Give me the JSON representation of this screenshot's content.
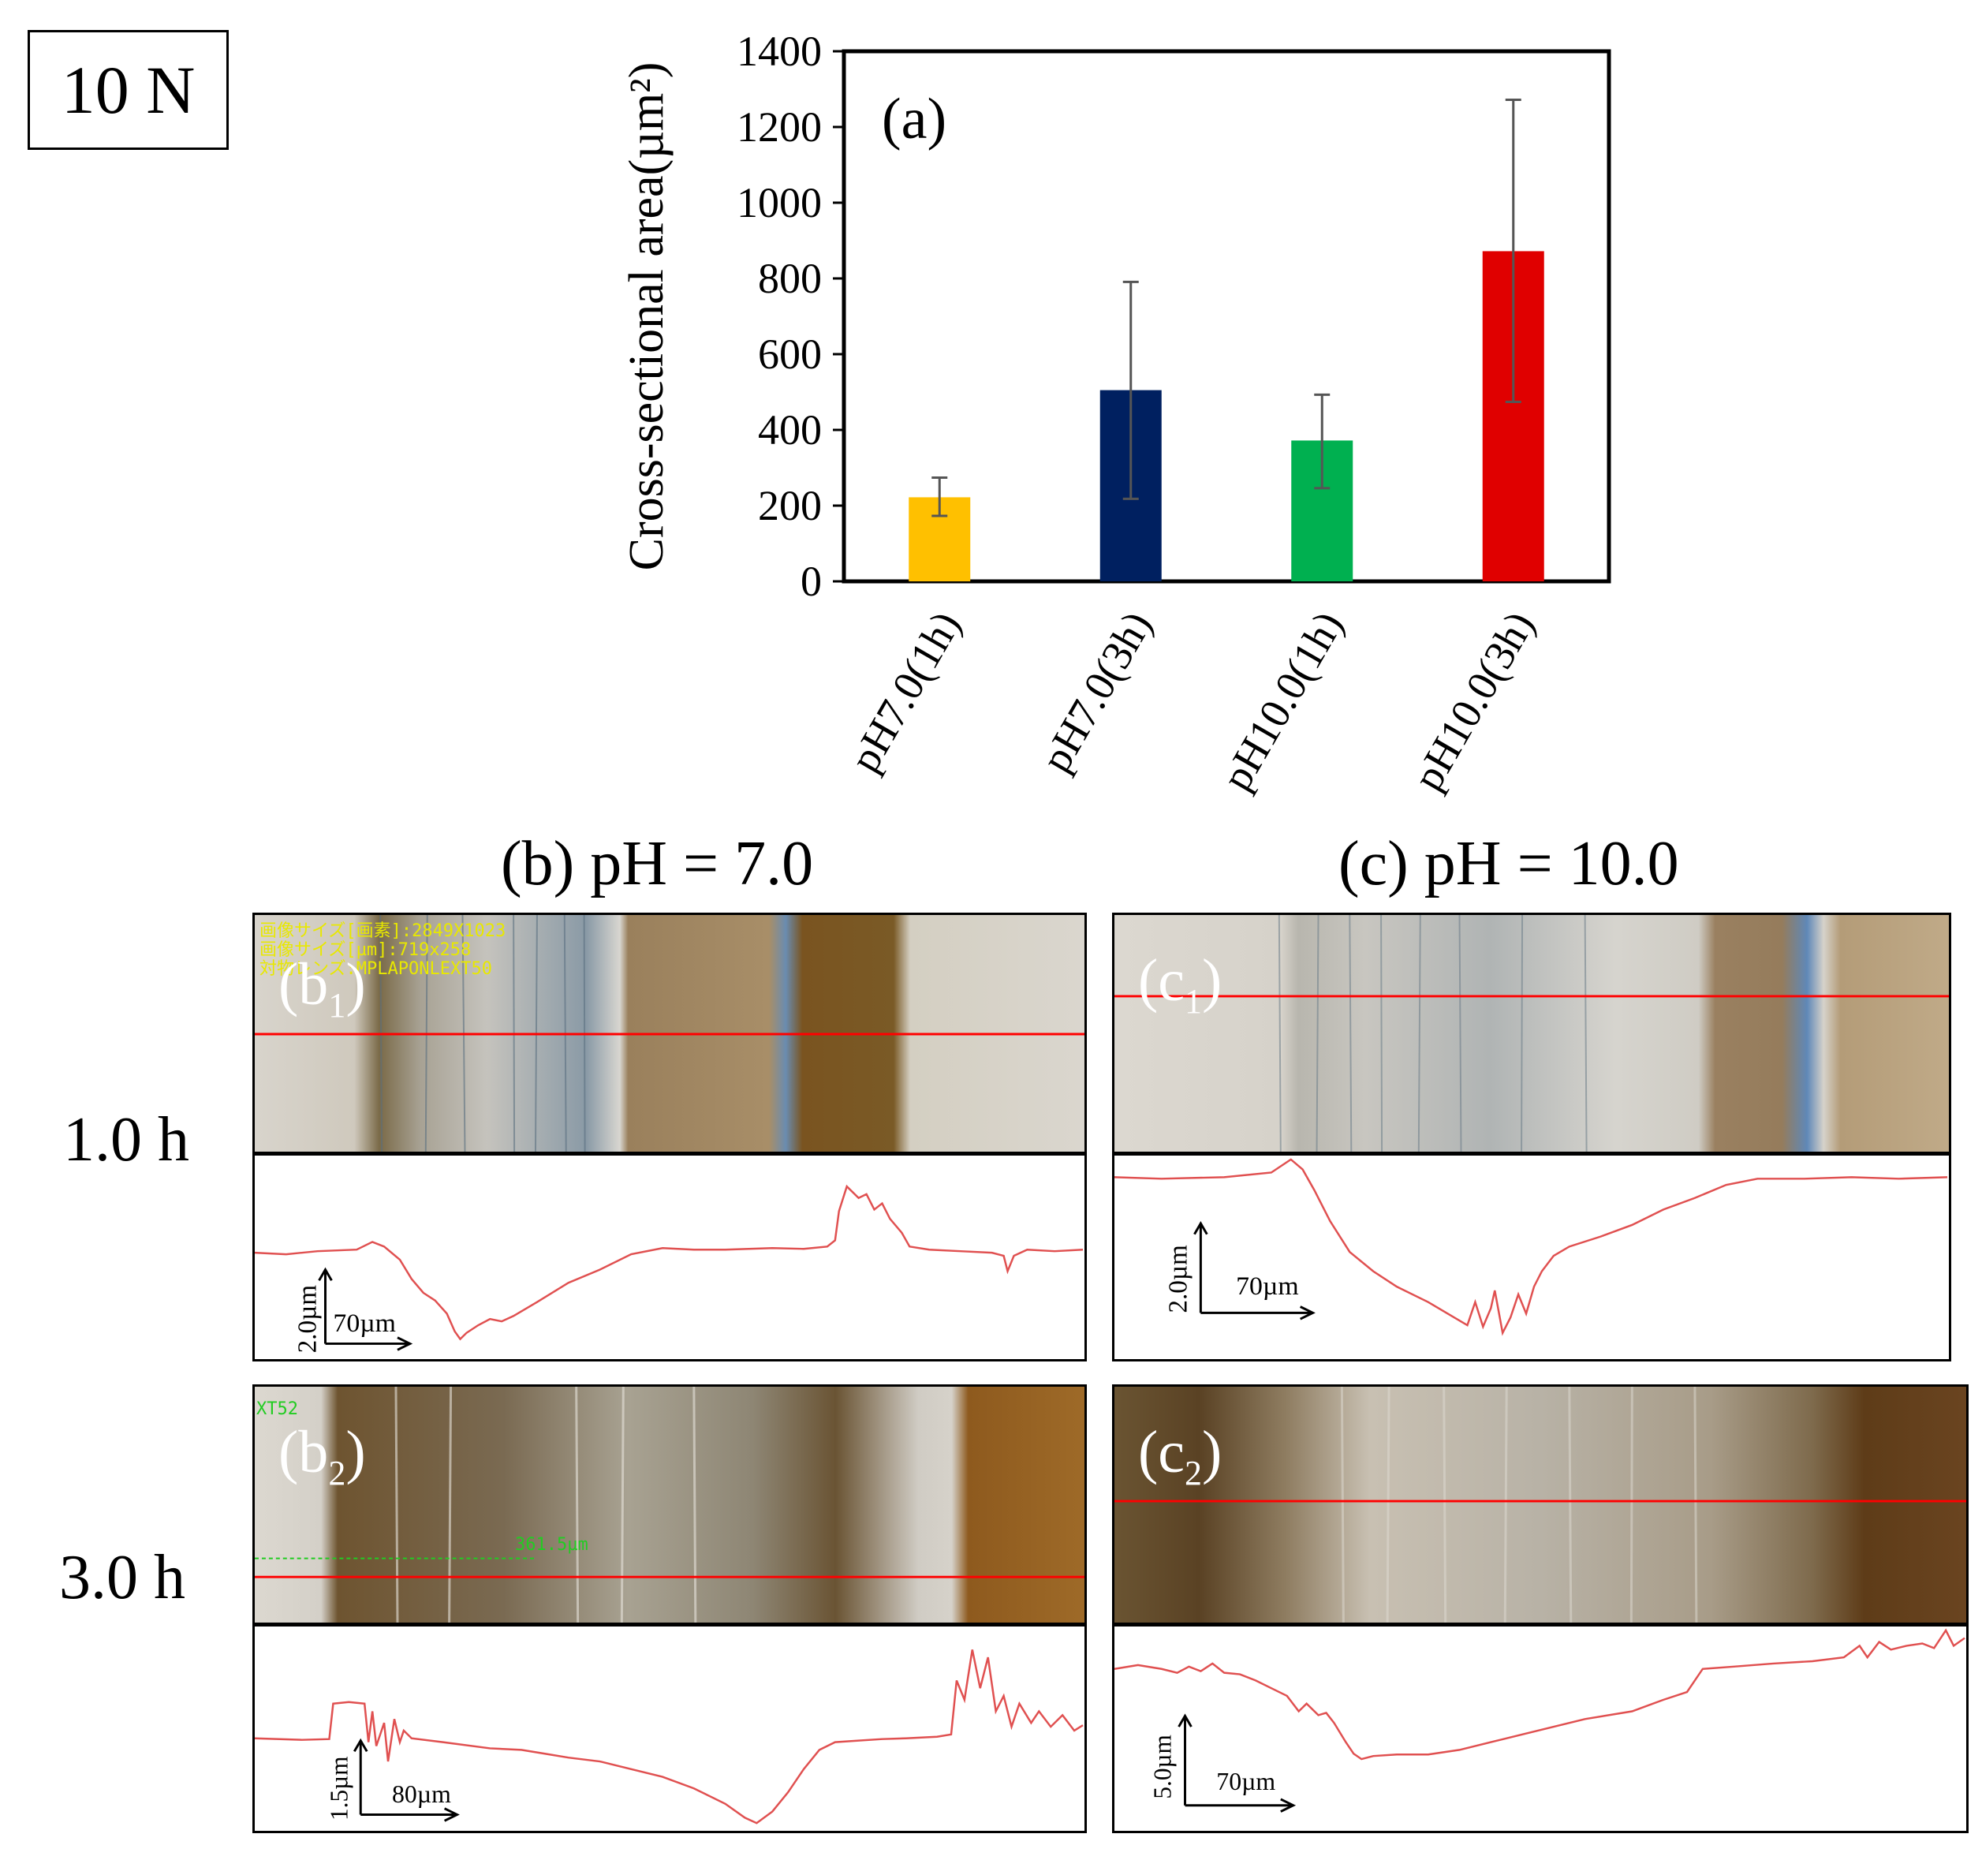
{
  "load_label": "10 N",
  "chart_data": {
    "type": "bar",
    "title": "(a)",
    "ylabel": "Cross-sectional area(µm²)",
    "xlabel": "",
    "ylim": [
      0,
      1400
    ],
    "yticks": [
      0,
      200,
      400,
      600,
      800,
      1000,
      1200,
      1400
    ],
    "categories": [
      "pH7.0(1h)",
      "pH7.0(3h)",
      "pH10.0(1h)",
      "pH10.0(3h)"
    ],
    "values": [
      222,
      505,
      372,
      872
    ],
    "error_low": [
      173,
      218,
      246,
      474
    ],
    "error_high": [
      274,
      791,
      493,
      1272
    ],
    "colors": [
      "#FFC000",
      "#002060",
      "#00B050",
      "#E00000"
    ],
    "grid": false
  },
  "columns": {
    "b_title": "(b) pH = 7.0",
    "c_title": "(c) pH = 10.0"
  },
  "rows": {
    "r1": "1.0 h",
    "r2": "3.0 h"
  },
  "panels": {
    "b1": {
      "tag_main": "(b",
      "tag_sub": "1",
      "tag_close": ")",
      "overlay_lines": [
        "画像サイズ[画素]:2849X1023",
        "画像サイズ[µm]:719x258",
        "対物レンズ:MPLAPONLEXT50"
      ],
      "scale_v": "2.0µm",
      "scale_h": "70µm"
    },
    "c1": {
      "tag_main": "(c",
      "tag_sub": "1",
      "tag_close": ")",
      "scale_v": "2.0µm",
      "scale_h": "70µm"
    },
    "b2": {
      "tag_main": "(b",
      "tag_sub": "2",
      "tag_close": ")",
      "overlay_xt": "XT52",
      "overlay_measure": "361.5µm",
      "scale_v": "1.5µm",
      "scale_h": "80µm"
    },
    "c2": {
      "tag_main": "(c",
      "tag_sub": "2",
      "tag_close": ")",
      "scale_v": "5.0µm",
      "scale_h": "70µm"
    }
  },
  "colors": {
    "profile_line": "#e05050",
    "scan_line": "#ff0000"
  }
}
